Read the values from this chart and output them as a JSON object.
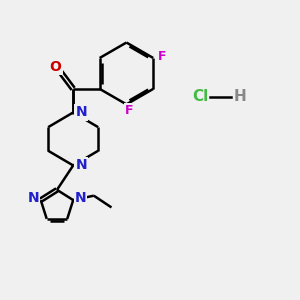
{
  "bg_color": "#f0f0f0",
  "bond_color": "#000000",
  "N_color": "#2020cc",
  "O_color": "#cc0000",
  "F_color": "#cc00cc",
  "Cl_color": "#44bb44",
  "H_color": "#888888",
  "line_width": 1.8,
  "figsize": [
    3.0,
    3.0
  ],
  "dpi": 100,
  "xlim": [
    0,
    10
  ],
  "ylim": [
    0,
    10
  ]
}
